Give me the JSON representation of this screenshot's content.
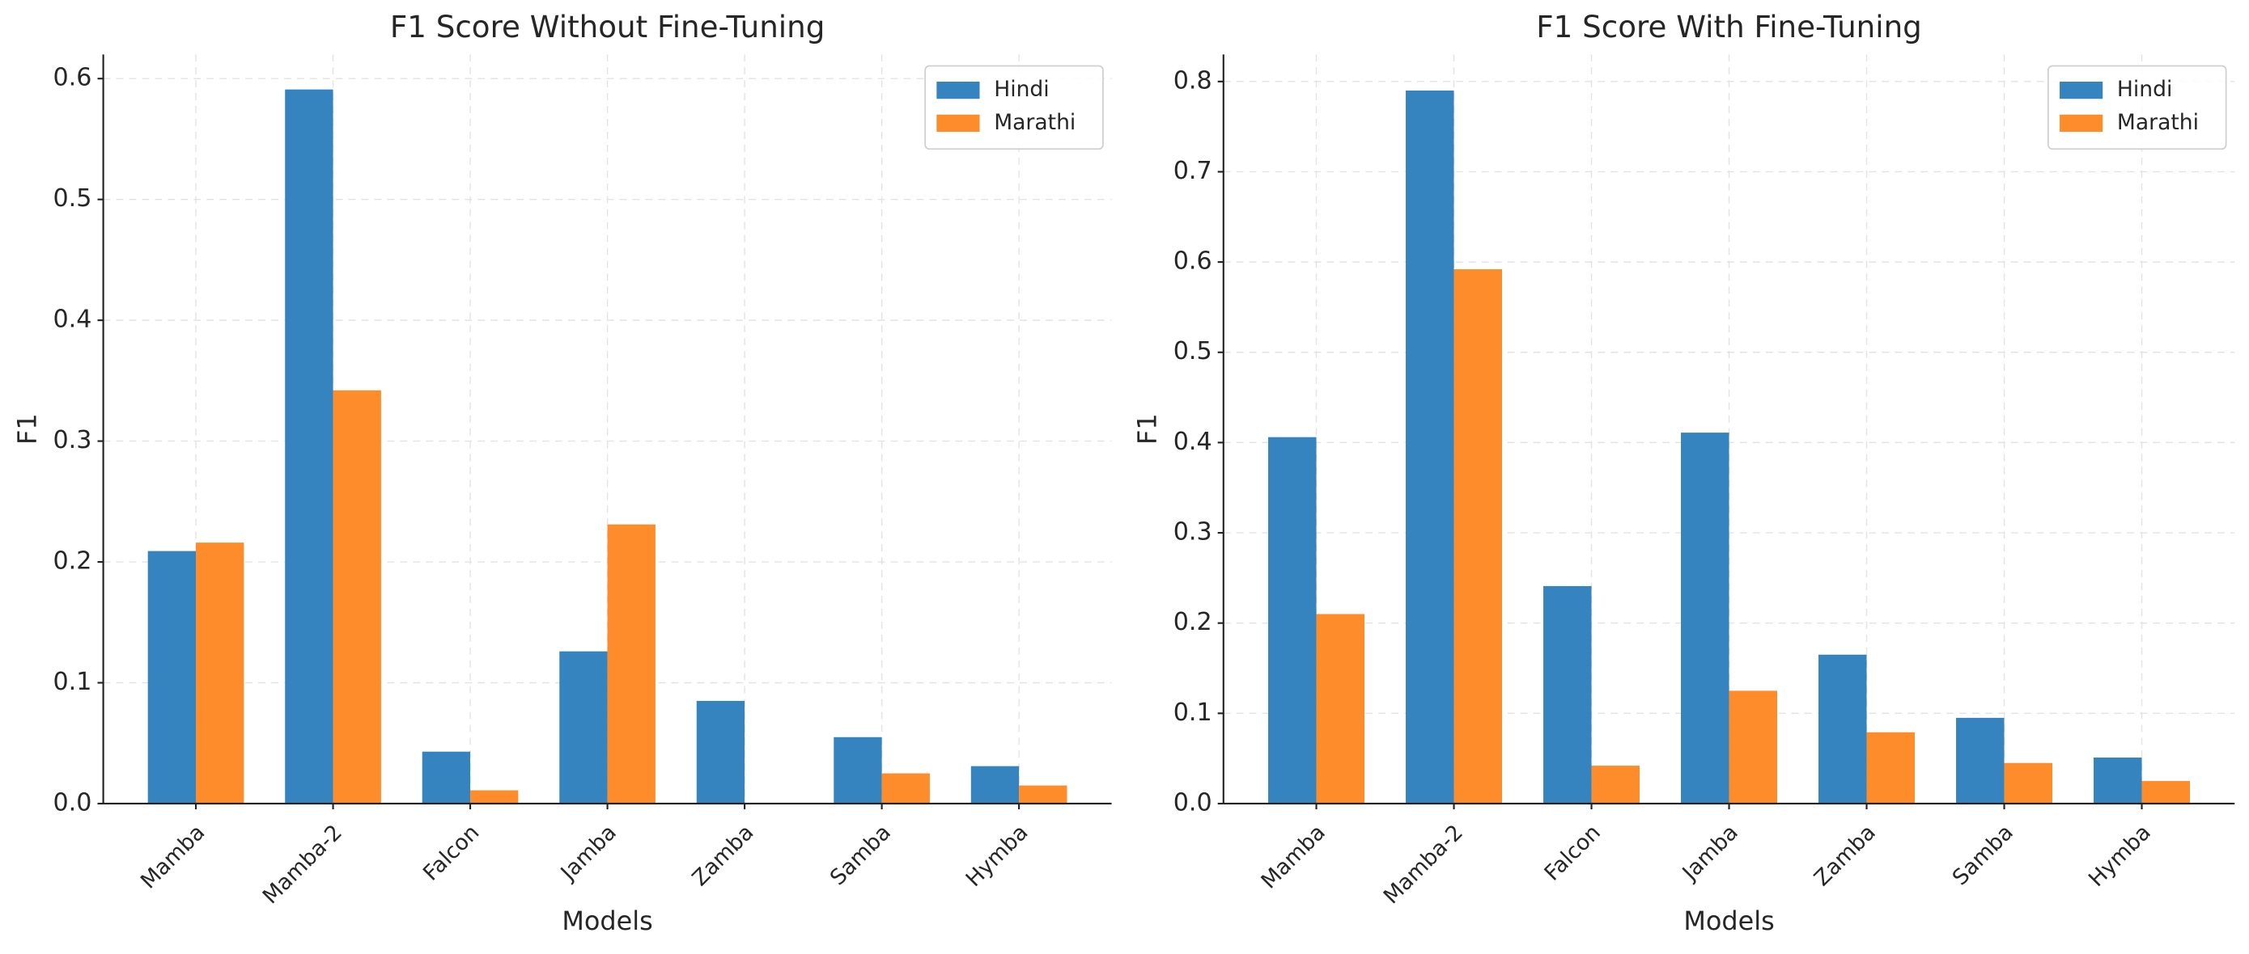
{
  "chart_data": [
    {
      "type": "bar",
      "title": "F1 Score Without Fine-Tuning",
      "x_label": "Models",
      "y_label": "F1",
      "categories": [
        "Mamba",
        "Mamba-2",
        "Falcon",
        "Jamba",
        "Zamba",
        "Samba",
        "Hymba"
      ],
      "series": [
        {
          "name": "Hindi",
          "color": "#3584bf",
          "values": [
            0.209,
            0.591,
            0.043,
            0.126,
            0.085,
            0.055,
            0.031
          ]
        },
        {
          "name": "Marathi",
          "color": "#ff8c2b",
          "values": [
            0.216,
            0.342,
            0.011,
            0.231,
            0,
            0.025,
            0.015
          ]
        }
      ],
      "ylim": [
        0,
        0.62
      ],
      "yticks": [
        {
          "value": 0,
          "label": "0.0"
        },
        0.1,
        0.2,
        0.3,
        0.4,
        0.5,
        0.6
      ],
      "grid": true,
      "legend": "upper right"
    },
    {
      "type": "bar",
      "title": "F1 Score With Fine-Tuning",
      "x_label": "Models",
      "y_label": "F1",
      "categories": [
        "Mamba",
        "Mamba-2",
        "Falcon",
        "Jamba",
        "Zamba",
        "Samba",
        "Hymba"
      ],
      "series": [
        {
          "name": "Hindi",
          "color": "#3584bf",
          "values": [
            0.406,
            0.79,
            0.241,
            0.411,
            0.165,
            0.095,
            0.051
          ]
        },
        {
          "name": "Marathi",
          "color": "#ff8c2b",
          "values": [
            0.21,
            0.592,
            0.042,
            0.125,
            0.079,
            0.045,
            0.025
          ]
        }
      ],
      "ylim": [
        0,
        0.83
      ],
      "yticks": [
        {
          "value": 0,
          "label": "0.0"
        },
        0.1,
        0.2,
        0.3,
        0.4,
        0.5,
        0.6,
        0.7,
        0.8
      ],
      "grid": true,
      "legend": "upper right"
    }
  ]
}
